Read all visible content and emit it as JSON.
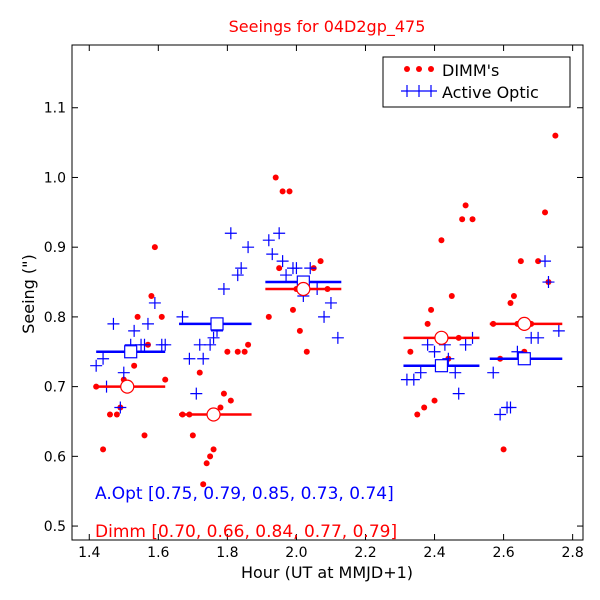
{
  "chart_data": {
    "type": "scatter",
    "title": "Seeings for 04D2gp_475",
    "xlabel": "Hour (UT at MMJD+1)",
    "ylabel": "Seeing (\")",
    "xlim": [
      1.35,
      2.83
    ],
    "ylim": [
      0.48,
      1.19
    ],
    "xticks": [
      1.4,
      1.6,
      1.8,
      2.0,
      2.2,
      2.4,
      2.6,
      2.8
    ],
    "xtick_labels": [
      "1.4",
      "1.6",
      "1.8",
      "2.0",
      "2.2",
      "2.4",
      "2.6",
      "2.8"
    ],
    "yticks": [
      0.5,
      0.6,
      0.7,
      0.8,
      0.9,
      1.0,
      1.1
    ],
    "ytick_labels": [
      "0.5",
      "0.6",
      "0.7",
      "0.8",
      "0.9",
      "1.0",
      "1.1"
    ],
    "legend": {
      "placement": "top-right",
      "entries": [
        {
          "label": "DIMM's",
          "series": "dimm"
        },
        {
          "label": "Active Optic",
          "series": "aopt"
        }
      ]
    },
    "colors": {
      "dimm": "#ff0000",
      "aopt": "#0000ff",
      "title": "#ff0000"
    },
    "series": [
      {
        "name": "DIMM's",
        "id": "dimm",
        "marker": "dot",
        "points": [
          [
            1.42,
            0.7
          ],
          [
            1.44,
            0.61
          ],
          [
            1.46,
            0.66
          ],
          [
            1.48,
            0.66
          ],
          [
            1.49,
            0.67
          ],
          [
            1.5,
            0.71
          ],
          [
            1.53,
            0.73
          ],
          [
            1.54,
            0.8
          ],
          [
            1.56,
            0.63
          ],
          [
            1.57,
            0.76
          ],
          [
            1.58,
            0.83
          ],
          [
            1.59,
            0.9
          ],
          [
            1.61,
            0.8
          ],
          [
            1.62,
            0.71
          ],
          [
            1.67,
            0.66
          ],
          [
            1.69,
            0.66
          ],
          [
            1.7,
            0.63
          ],
          [
            1.72,
            0.72
          ],
          [
            1.73,
            0.56
          ],
          [
            1.74,
            0.59
          ],
          [
            1.75,
            0.6
          ],
          [
            1.76,
            0.61
          ],
          [
            1.78,
            0.67
          ],
          [
            1.79,
            0.69
          ],
          [
            1.8,
            0.75
          ],
          [
            1.81,
            0.68
          ],
          [
            1.83,
            0.75
          ],
          [
            1.85,
            0.75
          ],
          [
            1.86,
            0.76
          ],
          [
            1.92,
            0.8
          ],
          [
            1.94,
            1.0
          ],
          [
            1.95,
            0.87
          ],
          [
            1.96,
            0.98
          ],
          [
            1.98,
            0.98
          ],
          [
            1.99,
            0.81
          ],
          [
            2.0,
            0.84
          ],
          [
            2.01,
            0.78
          ],
          [
            2.03,
            0.75
          ],
          [
            2.05,
            0.87
          ],
          [
            2.07,
            0.88
          ],
          [
            2.09,
            0.84
          ],
          [
            2.33,
            0.75
          ],
          [
            2.35,
            0.66
          ],
          [
            2.37,
            0.67
          ],
          [
            2.38,
            0.79
          ],
          [
            2.39,
            0.81
          ],
          [
            2.4,
            0.68
          ],
          [
            2.41,
            0.77
          ],
          [
            2.42,
            0.91
          ],
          [
            2.44,
            0.74
          ],
          [
            2.45,
            0.83
          ],
          [
            2.47,
            0.77
          ],
          [
            2.48,
            0.94
          ],
          [
            2.49,
            0.96
          ],
          [
            2.51,
            0.94
          ],
          [
            2.57,
            0.79
          ],
          [
            2.59,
            0.74
          ],
          [
            2.6,
            0.61
          ],
          [
            2.62,
            0.82
          ],
          [
            2.63,
            0.83
          ],
          [
            2.64,
            0.79
          ],
          [
            2.65,
            0.88
          ],
          [
            2.66,
            0.75
          ],
          [
            2.68,
            0.79
          ],
          [
            2.7,
            0.88
          ],
          [
            2.72,
            0.95
          ],
          [
            2.73,
            0.85
          ],
          [
            2.75,
            1.06
          ]
        ]
      },
      {
        "name": "Active Optic",
        "id": "aopt",
        "marker": "plus",
        "points": [
          [
            1.42,
            0.73
          ],
          [
            1.44,
            0.74
          ],
          [
            1.45,
            0.7
          ],
          [
            1.47,
            0.79
          ],
          [
            1.49,
            0.67
          ],
          [
            1.5,
            0.72
          ],
          [
            1.52,
            0.76
          ],
          [
            1.53,
            0.78
          ],
          [
            1.55,
            0.76
          ],
          [
            1.56,
            0.76
          ],
          [
            1.57,
            0.79
          ],
          [
            1.59,
            0.82
          ],
          [
            1.61,
            0.76
          ],
          [
            1.62,
            0.76
          ],
          [
            1.67,
            0.8
          ],
          [
            1.69,
            0.74
          ],
          [
            1.71,
            0.69
          ],
          [
            1.72,
            0.76
          ],
          [
            1.73,
            0.74
          ],
          [
            1.75,
            0.76
          ],
          [
            1.76,
            0.77
          ],
          [
            1.77,
            0.78
          ],
          [
            1.79,
            0.84
          ],
          [
            1.81,
            0.92
          ],
          [
            1.83,
            0.86
          ],
          [
            1.84,
            0.87
          ],
          [
            1.86,
            0.9
          ],
          [
            1.92,
            0.91
          ],
          [
            1.93,
            0.89
          ],
          [
            1.95,
            0.92
          ],
          [
            1.96,
            0.88
          ],
          [
            1.97,
            0.86
          ],
          [
            1.99,
            0.87
          ],
          [
            2.0,
            0.87
          ],
          [
            2.02,
            0.83
          ],
          [
            2.04,
            0.87
          ],
          [
            2.06,
            0.84
          ],
          [
            2.08,
            0.8
          ],
          [
            2.1,
            0.82
          ],
          [
            2.12,
            0.77
          ],
          [
            2.32,
            0.71
          ],
          [
            2.34,
            0.71
          ],
          [
            2.36,
            0.72
          ],
          [
            2.38,
            0.76
          ],
          [
            2.4,
            0.75
          ],
          [
            2.41,
            0.73
          ],
          [
            2.43,
            0.76
          ],
          [
            2.44,
            0.74
          ],
          [
            2.46,
            0.72
          ],
          [
            2.47,
            0.69
          ],
          [
            2.49,
            0.76
          ],
          [
            2.51,
            0.77
          ],
          [
            2.57,
            0.72
          ],
          [
            2.59,
            0.66
          ],
          [
            2.61,
            0.67
          ],
          [
            2.62,
            0.67
          ],
          [
            2.64,
            0.75
          ],
          [
            2.66,
            0.74
          ],
          [
            2.68,
            0.77
          ],
          [
            2.7,
            0.77
          ],
          [
            2.72,
            0.88
          ],
          [
            2.73,
            0.85
          ],
          [
            2.76,
            0.78
          ]
        ]
      }
    ],
    "bins": {
      "dimm": [
        {
          "center": 1.51,
          "start": 1.42,
          "end": 1.62,
          "value": 0.7
        },
        {
          "center": 1.76,
          "start": 1.66,
          "end": 1.87,
          "value": 0.66
        },
        {
          "center": 2.02,
          "start": 1.91,
          "end": 2.13,
          "value": 0.84
        },
        {
          "center": 2.42,
          "start": 2.31,
          "end": 2.53,
          "value": 0.77
        },
        {
          "center": 2.66,
          "start": 2.56,
          "end": 2.77,
          "value": 0.79
        }
      ],
      "aopt": [
        {
          "center": 1.52,
          "start": 1.42,
          "end": 1.62,
          "value": 0.75
        },
        {
          "center": 1.77,
          "start": 1.66,
          "end": 1.87,
          "value": 0.79
        },
        {
          "center": 2.02,
          "start": 1.91,
          "end": 2.13,
          "value": 0.85
        },
        {
          "center": 2.42,
          "start": 2.31,
          "end": 2.53,
          "value": 0.73
        },
        {
          "center": 2.66,
          "start": 2.56,
          "end": 2.77,
          "value": 0.74
        }
      ]
    },
    "annotations": {
      "aopt": "A.Opt [0.75, 0.79, 0.85, 0.73, 0.74]",
      "dimm": "Dimm [0.70, 0.66, 0.84, 0.77, 0.79]"
    }
  }
}
